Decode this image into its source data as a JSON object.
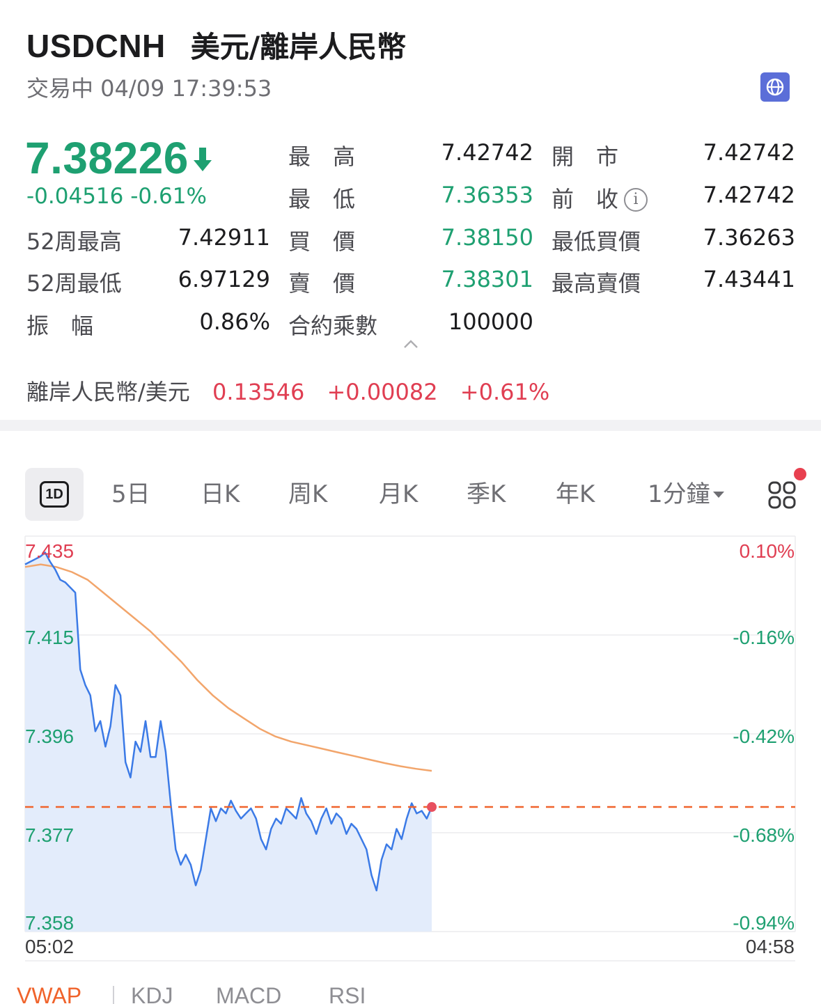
{
  "header": {
    "symbol": "USDCNH",
    "name": "美元/離岸人民幣",
    "status": "交易中 04/09 17:39:53"
  },
  "quote": {
    "price": "7.38226",
    "change": "-0.04516 -0.61%",
    "direction": "down"
  },
  "stats": {
    "high_label": "最　高",
    "high": "7.42742",
    "open_label": "開　市",
    "open": "7.42742",
    "low_label": "最　低",
    "low": "7.36353",
    "prev_label": "前　收",
    "prev": "7.42742",
    "wk52_high_label": "52周最高",
    "wk52_high": "7.42911",
    "bid_label": "買　價",
    "bid": "7.38150",
    "min_bid_label": "最低買價",
    "min_bid": "7.36263",
    "wk52_low_label": "52周最低",
    "wk52_low": "6.97129",
    "ask_label": "賣　價",
    "ask": "7.38301",
    "max_ask_label": "最高賣價",
    "max_ask": "7.43441",
    "amplitude_label": "振　幅",
    "amplitude": "0.86%",
    "multiplier_label": "合約乘數",
    "multiplier": "100000"
  },
  "inverse": {
    "label": "離岸人民幣/美元",
    "price": "0.13546",
    "change": "+0.00082",
    "pct": "+0.61%"
  },
  "period_tabs": {
    "d1": "1D",
    "d5": "5日",
    "day_k": "日K",
    "week_k": "周K",
    "month_k": "月K",
    "quarter_k": "季K",
    "year_k": "年K",
    "minute": "1分鐘"
  },
  "chart": {
    "y_left": [
      "7.435",
      "7.415",
      "7.396",
      "7.377",
      "7.358"
    ],
    "y_right": [
      "0.10%",
      "-0.16%",
      "-0.42%",
      "-0.68%",
      "-0.94%"
    ],
    "x_start": "05:02",
    "x_end": "04:58"
  },
  "chart_data": {
    "type": "line",
    "ylim": [
      7.358,
      7.435
    ],
    "reference_price": 7.38226,
    "series": [
      {
        "name": "Price",
        "values": [
          7.4295,
          7.43,
          7.4305,
          7.431,
          7.4318,
          7.43,
          7.4285,
          7.4265,
          7.426,
          7.425,
          7.424,
          7.409,
          7.406,
          7.404,
          7.397,
          7.399,
          7.394,
          7.398,
          7.406,
          7.404,
          7.391,
          7.388,
          7.395,
          7.393,
          7.399,
          7.392,
          7.392,
          7.399,
          7.393,
          7.383,
          7.374,
          7.371,
          7.373,
          7.371,
          7.367,
          7.37,
          7.376,
          7.382,
          7.3795,
          7.382,
          7.381,
          7.3835,
          7.3815,
          7.38,
          7.381,
          7.382,
          7.38,
          7.376,
          7.374,
          7.378,
          7.38,
          7.379,
          7.382,
          7.381,
          7.38,
          7.384,
          7.381,
          7.3795,
          7.377,
          7.38,
          7.382,
          7.379,
          7.381,
          7.38,
          7.377,
          7.379,
          7.378,
          7.376,
          7.374,
          7.369,
          7.366,
          7.372,
          7.375,
          7.374,
          7.378,
          7.376,
          7.38,
          7.383,
          7.381,
          7.3815,
          7.38,
          7.38226
        ]
      },
      {
        "name": "VWAP",
        "values": [
          7.429,
          7.4295,
          7.429,
          7.428,
          7.4265,
          7.424,
          7.4215,
          7.419,
          7.4165,
          7.4135,
          7.4105,
          7.407,
          7.404,
          7.4015,
          7.3995,
          7.3975,
          7.396,
          7.395,
          7.3943,
          7.3936,
          7.3929,
          7.3922,
          7.3915,
          7.3908,
          7.3902,
          7.3897,
          7.3893
        ]
      }
    ]
  },
  "indicator_tabs": [
    "VWAP",
    "KDJ",
    "MACD",
    "RSI"
  ],
  "colors": {
    "up": "#e03e52",
    "down": "#1ea071",
    "line": "#3b7ae6",
    "fill": "#e3ecfb",
    "vwap": "#f2a56b",
    "ref_line": "#f0632b",
    "accent": "#f0632b"
  }
}
